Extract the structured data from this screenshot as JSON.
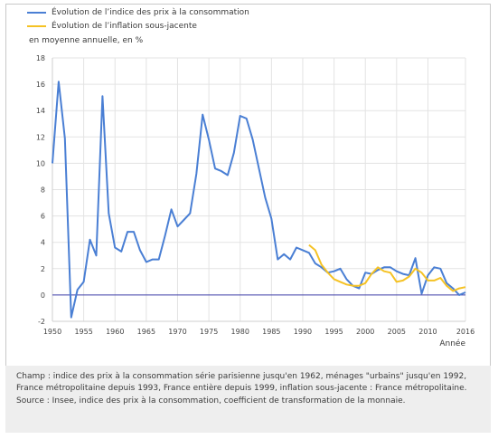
{
  "legend": {
    "cpi_label": "Évolution de l’indice des prix à la consommation",
    "core_label": "Évolution de l’inflation sous-jacente",
    "cpi_color": "#4a7fd4",
    "core_color": "#f5c224"
  },
  "unit_label": "en moyenne annuelle, en %",
  "notes": {
    "champ": "Champ : indice des prix à la consommation série parisienne jusqu'en 1962, ménages \"urbains\" jusqu'en 1992, France métropolitaine depuis 1993, France entière depuis 1999, inflation sous-jacente : France métropolitaine.",
    "source": "Source : Insee, indice des prix à la consommation, coefficient de transformation de la monnaie."
  },
  "chart_data": {
    "type": "line",
    "xlabel": "Année",
    "ylabel": "en moyenne annuelle, en %",
    "xlim": [
      1950,
      2016
    ],
    "ylim": [
      -2,
      18
    ],
    "x_ticks": [
      1950,
      1955,
      1960,
      1965,
      1970,
      1975,
      1980,
      1985,
      1990,
      1995,
      2000,
      2005,
      2010,
      2016
    ],
    "y_ticks": [
      -2,
      0,
      2,
      4,
      6,
      8,
      10,
      12,
      14,
      16,
      18
    ],
    "grid": true,
    "legend_position": "top-left",
    "series": [
      {
        "name": "Évolution de l’indice des prix à la consommation",
        "color": "#4a7fd4",
        "x": [
          1950,
          1951,
          1952,
          1953,
          1954,
          1955,
          1956,
          1957,
          1958,
          1959,
          1960,
          1961,
          1962,
          1963,
          1964,
          1965,
          1966,
          1967,
          1968,
          1969,
          1970,
          1971,
          1972,
          1973,
          1974,
          1975,
          1976,
          1977,
          1978,
          1979,
          1980,
          1981,
          1982,
          1983,
          1984,
          1985,
          1986,
          1987,
          1988,
          1989,
          1990,
          1991,
          1992,
          1993,
          1994,
          1995,
          1996,
          1997,
          1998,
          1999,
          2000,
          2001,
          2002,
          2003,
          2004,
          2005,
          2006,
          2007,
          2008,
          2009,
          2010,
          2011,
          2012,
          2013,
          2014,
          2015,
          2016
        ],
        "values": [
          10.0,
          16.2,
          11.9,
          -1.7,
          0.4,
          1.0,
          4.2,
          3.0,
          15.1,
          6.2,
          3.6,
          3.3,
          4.8,
          4.8,
          3.4,
          2.5,
          2.7,
          2.7,
          4.5,
          6.5,
          5.2,
          5.7,
          6.2,
          9.2,
          13.7,
          11.8,
          9.6,
          9.4,
          9.1,
          10.8,
          13.6,
          13.4,
          11.8,
          9.6,
          7.4,
          5.8,
          2.7,
          3.1,
          2.7,
          3.6,
          3.4,
          3.2,
          2.4,
          2.1,
          1.7,
          1.8,
          2.0,
          1.2,
          0.7,
          0.5,
          1.7,
          1.6,
          1.9,
          2.1,
          2.1,
          1.8,
          1.6,
          1.5,
          2.8,
          0.1,
          1.5,
          2.1,
          2.0,
          0.9,
          0.5,
          0.0,
          0.2
        ]
      },
      {
        "name": "Évolution de l’inflation sous-jacente",
        "color": "#f5c224",
        "x": [
          1991,
          1992,
          1993,
          1994,
          1995,
          1996,
          1997,
          1998,
          1999,
          2000,
          2001,
          2002,
          2003,
          2004,
          2005,
          2006,
          2007,
          2008,
          2009,
          2010,
          2011,
          2012,
          2013,
          2014,
          2015,
          2016
        ],
        "values": [
          3.8,
          3.4,
          2.3,
          1.7,
          1.2,
          1.0,
          0.8,
          0.7,
          0.7,
          0.9,
          1.6,
          2.1,
          1.8,
          1.7,
          1.0,
          1.1,
          1.4,
          2.0,
          1.7,
          1.1,
          1.1,
          1.3,
          0.7,
          0.3,
          0.5,
          0.6
        ]
      }
    ]
  }
}
